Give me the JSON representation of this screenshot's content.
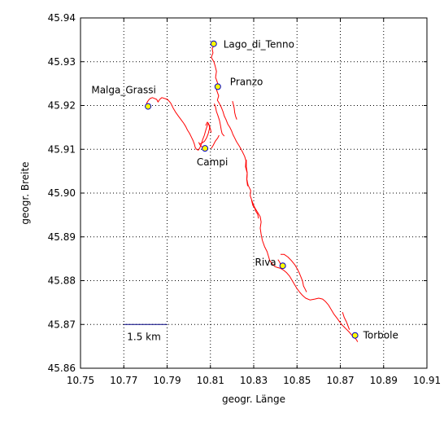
{
  "chart_data": {
    "type": "line",
    "title": "",
    "xlabel": "geogr. Länge",
    "ylabel": "geogr. Breite",
    "xlim": [
      10.75,
      10.91
    ],
    "ylim": [
      45.86,
      45.94
    ],
    "x_ticks": [
      "10.75",
      "10.77",
      "10.79",
      "10.81",
      "10.83",
      "10.85",
      "10.87",
      "10.89",
      "10.91"
    ],
    "y_ticks": [
      "45.86",
      "45.87",
      "45.88",
      "45.89",
      "45.90",
      "45.91",
      "45.92",
      "45.93",
      "45.94"
    ],
    "grid": true,
    "colors": {
      "track": "#ff0000",
      "marker_fill": "#ffff00",
      "marker_edge": "#0000cc",
      "scale_bar": "#000080"
    },
    "series": [
      {
        "x": [
          10.8118,
          10.8108,
          10.8112,
          10.8104,
          10.8116,
          10.8122,
          10.8128,
          10.8124,
          10.8134,
          10.8128,
          10.8138,
          10.8132,
          10.8142,
          10.815,
          10.8158,
          10.8164,
          10.8172,
          10.818,
          10.819,
          10.8198,
          10.8204,
          10.8212,
          10.822,
          10.823,
          10.824,
          10.8248,
          10.8258,
          10.8264,
          10.8262,
          10.827,
          10.8268,
          10.8274,
          10.8286,
          10.8284,
          10.8292,
          10.83,
          10.8308,
          10.8318,
          10.833,
          10.8334,
          10.833,
          10.8334,
          10.834,
          10.835,
          10.8362,
          10.8368,
          10.8374,
          10.8386,
          10.8398,
          10.841,
          10.8424,
          10.8438,
          10.8452,
          10.8466,
          10.8478,
          10.849,
          10.85,
          10.8512,
          10.8526,
          10.854,
          10.856,
          10.8582,
          10.86,
          10.8618,
          10.8632,
          10.8646,
          10.8658,
          10.867,
          10.8682,
          10.8694,
          10.8706,
          10.8718,
          10.873,
          10.8742,
          10.8752,
          10.8762,
          10.877,
          10.8776,
          10.878
        ],
        "y": [
          45.9338,
          45.933,
          45.932,
          45.931,
          45.93,
          45.929,
          45.9278,
          45.9264,
          45.925,
          45.9236,
          45.9222,
          45.9212,
          45.9204,
          45.9196,
          45.9186,
          45.9176,
          45.9168,
          45.9158,
          45.915,
          45.9142,
          45.9134,
          45.9126,
          45.9118,
          45.911,
          45.9102,
          45.9094,
          45.9084,
          45.9074,
          45.906,
          45.9046,
          45.9032,
          45.9018,
          45.9006,
          45.8994,
          45.8982,
          45.8972,
          45.8964,
          45.8956,
          45.8946,
          45.8934,
          45.892,
          45.8906,
          45.8892,
          45.8878,
          45.8866,
          45.8856,
          45.8846,
          45.8838,
          45.8832,
          45.883,
          45.8828,
          45.8824,
          45.8818,
          45.881,
          45.88,
          45.879,
          45.8782,
          45.8774,
          45.8766,
          45.876,
          45.8756,
          45.8758,
          45.876,
          45.8758,
          45.8752,
          45.8744,
          45.8734,
          45.8724,
          45.8716,
          45.8708,
          45.87,
          45.8694,
          45.8688,
          45.8682,
          45.8676,
          45.8672,
          45.8668,
          45.8664,
          45.866
        ]
      },
      {
        "x": [
          10.8118,
          10.8124,
          10.8128,
          10.8134,
          10.8142,
          10.8146,
          10.815,
          10.8154,
          10.8164
        ],
        "y": [
          45.9204,
          45.9196,
          45.9186,
          45.9178,
          45.9166,
          45.9156,
          45.9144,
          45.9136,
          45.913
        ]
      },
      {
        "x": [
          10.8104,
          10.8098,
          10.809,
          10.808,
          10.8072,
          10.8064,
          10.8058,
          10.805,
          10.8044,
          10.8036,
          10.803,
          10.8026,
          10.802,
          10.8012,
          10.8004,
          10.7994,
          10.7986,
          10.7976,
          10.7964,
          10.7952,
          10.794,
          10.7928,
          10.7916,
          10.7902,
          10.7888,
          10.7876,
          10.7866,
          10.7858,
          10.7852,
          10.7842,
          10.7832,
          10.7822,
          10.7814,
          10.7806,
          10.7812
        ],
        "y": [
          45.9138,
          45.915,
          45.916,
          45.9146,
          45.9132,
          45.9122,
          45.9112,
          45.9102,
          45.9098,
          45.91,
          45.9104,
          45.9112,
          45.912,
          45.9128,
          45.9136,
          45.9144,
          45.9152,
          45.916,
          45.9168,
          45.9176,
          45.9184,
          45.9194,
          45.9206,
          45.9214,
          45.9216,
          45.9218,
          45.9214,
          45.9208,
          45.9214,
          45.9216,
          45.9218,
          45.9216,
          45.9212,
          45.9206,
          45.9198
        ]
      },
      {
        "x": [
          10.805,
          10.806,
          10.8072,
          10.8082,
          10.809,
          10.8096,
          10.8094,
          10.8086,
          10.8078
        ],
        "y": [
          45.9112,
          45.9114,
          45.9118,
          45.9126,
          45.9136,
          45.9148,
          45.9156,
          45.9162,
          45.9154
        ]
      },
      {
        "x": [
          10.8104,
          10.8112,
          10.8122,
          10.8134,
          10.814
        ],
        "y": [
          45.9102,
          45.9108,
          45.9118,
          45.9126,
          45.9132
        ]
      },
      {
        "x": [
          10.8046,
          10.8052,
          10.806,
          10.8068,
          10.8072,
          10.8082
        ],
        "y": [
          45.9116,
          45.911,
          45.9106,
          45.9102,
          45.9098,
          45.91
        ]
      },
      {
        "x": [
          10.8202,
          10.8206,
          10.821,
          10.8212,
          10.8216,
          10.8222
        ],
        "y": [
          45.921,
          45.9202,
          45.9194,
          45.9184,
          45.9176,
          45.9168
        ]
      },
      {
        "x": [
          10.8266,
          10.8266,
          10.827,
          10.8268,
          10.8272
        ],
        "y": [
          45.9076,
          45.906,
          45.9046,
          45.903,
          45.9016
        ]
      },
      {
        "x": [
          10.829,
          10.8296,
          10.8304,
          10.831,
          10.8318,
          10.8322
        ],
        "y": [
          45.8984,
          45.8972,
          45.8966,
          45.8958,
          45.8952,
          45.8942
        ]
      },
      {
        "x": [
          10.8412,
          10.842,
          10.8426,
          10.8432
        ],
        "y": [
          45.8848,
          45.8842,
          45.8834,
          45.8828
        ]
      },
      {
        "x": [
          10.8424,
          10.844,
          10.8458,
          10.8474,
          10.849,
          10.8502,
          10.8512,
          10.852,
          10.8526,
          10.853,
          10.8538,
          10.8544
        ],
        "y": [
          45.886,
          45.886,
          45.8854,
          45.8846,
          45.8836,
          45.8826,
          45.8816,
          45.8806,
          45.8798,
          45.8788,
          45.878,
          45.8774
        ]
      },
      {
        "x": [
          10.871,
          10.8718,
          10.8728,
          10.8736,
          10.8742
        ],
        "y": [
          45.8728,
          45.8716,
          45.8706,
          45.8696,
          45.8688
        ]
      }
    ],
    "points": [
      {
        "label": "Lago_di_Tenno",
        "x": 10.8115,
        "y": 45.9341
      },
      {
        "label": "Pranzo",
        "x": 10.8134,
        "y": 45.9243
      },
      {
        "label": "Malga_Grassi",
        "x": 10.7812,
        "y": 45.9198
      },
      {
        "label": "Campi",
        "x": 10.8075,
        "y": 45.9102
      },
      {
        "label": "Riva",
        "x": 10.8434,
        "y": 45.8834
      },
      {
        "label": "Torbole",
        "x": 10.8768,
        "y": 45.8675
      }
    ],
    "scale_bar": {
      "label": "1.5 km",
      "x": [
        10.77,
        10.79
      ],
      "y": 45.87
    }
  }
}
